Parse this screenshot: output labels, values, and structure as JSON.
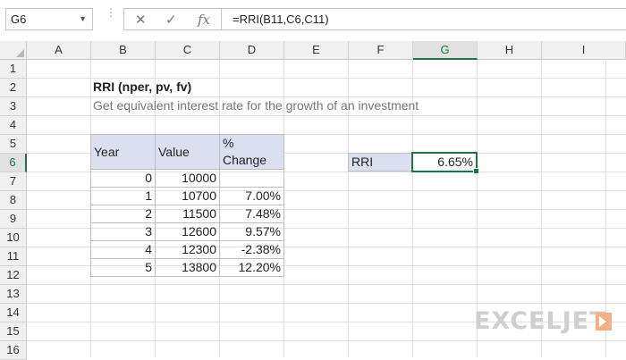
{
  "formula_bar": {
    "name_box": "G6",
    "cancel_glyph": "✕",
    "enter_glyph": "✓",
    "fx_label": "fx",
    "formula": "=RRI(B11,C6,C11)"
  },
  "columns": [
    "A",
    "B",
    "C",
    "D",
    "E",
    "F",
    "G",
    "H",
    "I"
  ],
  "active_column": "G",
  "rows": [
    "1",
    "2",
    "3",
    "4",
    "5",
    "6",
    "7",
    "8",
    "9",
    "10",
    "11",
    "12",
    "13",
    "14",
    "15",
    "16"
  ],
  "active_row": "6",
  "sheet": {
    "title": "RRI (nper, pv, fv)",
    "subtitle": "Get equivalent interest rate for the growth of an investment",
    "table": {
      "headers": [
        "Year",
        "Value",
        "% Change"
      ],
      "rows": [
        [
          "0",
          "10000",
          ""
        ],
        [
          "1",
          "10700",
          "7.00%"
        ],
        [
          "2",
          "11500",
          "7.48%"
        ],
        [
          "3",
          "12600",
          "9.57%"
        ],
        [
          "4",
          "12300",
          "-2.38%"
        ],
        [
          "5",
          "13800",
          "12.20%"
        ]
      ]
    },
    "result_label": "RRI",
    "result_value": "6.65%"
  },
  "logo": {
    "text": "EXCELJET",
    "accent_color": "#f4b183"
  },
  "colors": {
    "selection": "#217346",
    "header_fill": "#dbe0f1"
  }
}
